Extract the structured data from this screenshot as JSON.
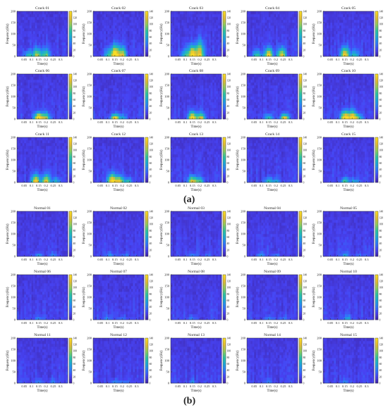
{
  "figure": {
    "panel_labels": [
      "(a)",
      "(b)"
    ]
  },
  "colormap": [
    "#3e26a8",
    "#4743f3",
    "#2f7afb",
    "#1ba9d6",
    "#2dc3a0",
    "#91cb5b",
    "#e2ba36",
    "#f9dd25"
  ],
  "colorbar_ticks": [
    "0",
    "20",
    "40",
    "60",
    "80",
    "100",
    "120",
    "140"
  ],
  "chart_data": [
    {
      "type": "heatmap",
      "group": "a",
      "xlabel": "Time(s)",
      "ylabel": "Frequency(Hz)",
      "yticks": [
        "0",
        "50",
        "100",
        "150",
        "200"
      ],
      "ylim": [
        0,
        200
      ],
      "xticks": [
        "0.05",
        "0.1",
        "0.15",
        "0.2",
        "0.25",
        "0.3"
      ],
      "colorbar_range": [
        0,
        140
      ],
      "panels": [
        {
          "title": "Crack 01",
          "hot": [
            [
              0.14,
              0.2,
              90
            ],
            [
              0.2,
              0.2,
              75
            ],
            [
              0.08,
              0.15,
              55
            ]
          ]
        },
        {
          "title": "Crack 02",
          "hot": [
            [
              0.15,
              0.25,
              140
            ],
            [
              0.2,
              0.22,
              100
            ],
            [
              0.1,
              0.2,
              50
            ]
          ]
        },
        {
          "title": "Crack 03",
          "hot": [
            [
              0.15,
              0.25,
              130
            ],
            [
              0.2,
              0.35,
              110
            ],
            [
              0.1,
              0.2,
              60
            ]
          ]
        },
        {
          "title": "Crack 04",
          "hot": [
            [
              0.15,
              0.2,
              120
            ],
            [
              0.24,
              0.2,
              110
            ],
            [
              0.07,
              0.15,
              70
            ]
          ]
        },
        {
          "title": "Crack 05",
          "hot": [
            [
              0.15,
              0.22,
              125
            ],
            [
              0.22,
              0.15,
              50
            ]
          ]
        },
        {
          "title": "Crack 06",
          "hot": [
            [
              0.15,
              0.15,
              140
            ],
            [
              0.2,
              0.15,
              90
            ]
          ]
        },
        {
          "title": "Crack 07",
          "hot": [
            [
              0.15,
              0.12,
              120
            ],
            [
              0.2,
              0.12,
              40
            ]
          ]
        },
        {
          "title": "Crack 08",
          "hot": [
            [
              0.15,
              0.18,
              140
            ],
            [
              0.21,
              0.15,
              100
            ]
          ]
        },
        {
          "title": "Crack 09",
          "hot": [
            [
              0.26,
              0.12,
              120
            ],
            [
              0.15,
              0.12,
              60
            ]
          ]
        },
        {
          "title": "Crack 10",
          "hot": [
            [
              0.15,
              0.18,
              140
            ],
            [
              0.2,
              0.2,
              120
            ],
            [
              0.24,
              0.12,
              70
            ]
          ]
        },
        {
          "title": "Crack 11",
          "hot": [
            [
              0.13,
              0.18,
              120
            ],
            [
              0.2,
              0.18,
              110
            ],
            [
              0.27,
              0.12,
              50
            ]
          ]
        },
        {
          "title": "Crack 12",
          "hot": [
            [
              0.13,
              0.2,
              130
            ],
            [
              0.18,
              0.15,
              110
            ],
            [
              0.24,
              0.12,
              60
            ]
          ]
        },
        {
          "title": "Crack 13",
          "hot": [
            [
              0.15,
              0.15,
              110
            ],
            [
              0.2,
              0.12,
              60
            ]
          ]
        },
        {
          "title": "Crack 14",
          "hot": [
            [
              0.15,
              0.12,
              60
            ],
            [
              0.2,
              0.1,
              35
            ]
          ]
        },
        {
          "title": "Crack 15",
          "hot": [
            [
              0.15,
              0.12,
              70
            ],
            [
              0.22,
              0.1,
              40
            ]
          ]
        }
      ]
    },
    {
      "type": "heatmap",
      "group": "b",
      "xlabel": "Time(s)",
      "ylabel": "Frequency(Hz)",
      "yticks": [
        "0",
        "50",
        "100",
        "150",
        "200"
      ],
      "ylim": [
        0,
        200
      ],
      "xticks": [
        "0.05",
        "0.1",
        "0.15",
        "0.2",
        "0.25",
        "0.3"
      ],
      "colorbar_range": [
        0,
        140
      ],
      "panels": [
        {
          "title": "Normal 01",
          "hot": [
            [
              0.15,
              0.1,
              35
            ],
            [
              0.25,
              0.1,
              25
            ]
          ]
        },
        {
          "title": "Normal 02",
          "hot": [
            [
              0.12,
              0.1,
              30
            ],
            [
              0.22,
              0.08,
              25
            ]
          ]
        },
        {
          "title": "Normal 03",
          "hot": [
            [
              0.15,
              0.1,
              30
            ],
            [
              0.26,
              0.08,
              20
            ]
          ]
        },
        {
          "title": "Normal 04",
          "hot": [
            [
              0.1,
              0.1,
              30
            ],
            [
              0.2,
              0.08,
              25
            ]
          ]
        },
        {
          "title": "Normal 05",
          "hot": [
            [
              0.15,
              0.1,
              30
            ],
            [
              0.25,
              0.08,
              20
            ]
          ]
        },
        {
          "title": "Normal 06",
          "hot": [
            [
              0.15,
              0.1,
              25
            ]
          ]
        },
        {
          "title": "Normal 07",
          "hot": [
            [
              0.1,
              0.1,
              25
            ],
            [
              0.2,
              0.1,
              25
            ]
          ]
        },
        {
          "title": "Normal 08",
          "hot": [
            [
              0.15,
              0.1,
              25
            ]
          ]
        },
        {
          "title": "Normal 09",
          "hot": [
            [
              0.15,
              0.1,
              25
            ],
            [
              0.25,
              0.1,
              20
            ]
          ]
        },
        {
          "title": "Normal 10",
          "hot": [
            [
              0.17,
              0.12,
              35
            ]
          ]
        },
        {
          "title": "Normal 11",
          "hot": [
            [
              0.15,
              0.1,
              30
            ],
            [
              0.25,
              0.1,
              25
            ]
          ]
        },
        {
          "title": "Normal 12",
          "hot": [
            [
              0.15,
              0.1,
              30
            ],
            [
              0.22,
              0.08,
              25
            ]
          ]
        },
        {
          "title": "Normal 13",
          "hot": [
            [
              0.15,
              0.1,
              25
            ]
          ]
        },
        {
          "title": "Normal 14",
          "hot": [
            [
              0.15,
              0.1,
              25
            ]
          ]
        },
        {
          "title": "Normal 15",
          "hot": [
            [
              0.15,
              0.1,
              25
            ]
          ]
        }
      ]
    }
  ]
}
